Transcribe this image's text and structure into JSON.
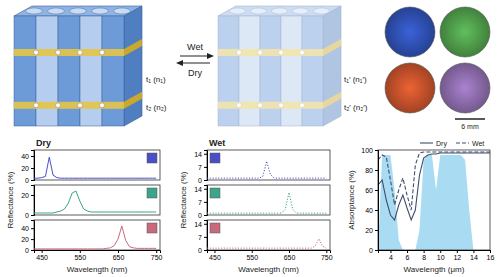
{
  "diagram": {
    "wet": "Wet",
    "dry": "Dry",
    "dry_layers": [
      "t₁ (n₁)",
      "t₂ (n₂)"
    ],
    "wet_layers": [
      "t₁′ (n₁′)",
      "t₂′ (n₂′)"
    ],
    "scale_bar": "6 mm"
  },
  "chart_data": [
    {
      "type": "line",
      "title": "Dry",
      "x_label": "Wavelength (nm)",
      "y_label": "Reflectance (%)",
      "x": [
        430,
        440,
        450,
        460,
        470,
        480,
        490,
        500,
        510,
        520,
        530,
        540,
        550,
        560,
        570,
        580,
        590,
        600,
        610,
        620,
        630,
        640,
        650,
        660,
        670,
        680,
        690,
        700,
        710,
        720,
        730,
        740,
        750
      ],
      "xlim": [
        430,
        760
      ],
      "xticks": [
        450,
        550,
        650,
        750
      ],
      "panels": [
        {
          "ylim": [
            0,
            50
          ],
          "yticks": [
            0,
            20,
            40
          ],
          "series": [
            {
              "color": "#4a4fc8",
              "line_style": "solid",
              "values": [
                3,
                3,
                4,
                6,
                38,
                8,
                4,
                3,
                3,
                3,
                3,
                3,
                3,
                3,
                3,
                3,
                3,
                3,
                3,
                3,
                3,
                3,
                3,
                3,
                3,
                3,
                3,
                3,
                3,
                3,
                3,
                3,
                3
              ]
            }
          ]
        },
        {
          "ylim": [
            0,
            30
          ],
          "yticks": [
            0,
            20
          ],
          "series": [
            {
              "color": "#3aa58a",
              "line_style": "solid",
              "values": [
                2,
                2,
                2,
                2,
                2,
                2,
                3,
                4,
                6,
                12,
                22,
                24,
                14,
                6,
                4,
                3,
                3,
                3,
                3,
                3,
                3,
                3,
                3,
                3,
                3,
                3,
                3,
                3,
                3,
                3,
                3,
                3,
                3
              ]
            }
          ]
        },
        {
          "ylim": [
            0,
            55
          ],
          "yticks": [
            0,
            20,
            40
          ],
          "series": [
            {
              "color": "#c9697e",
              "line_style": "solid",
              "values": [
                2,
                2,
                2,
                2,
                2,
                2,
                2,
                2,
                2,
                2,
                2,
                2,
                2,
                2,
                2,
                2,
                2,
                2,
                2,
                3,
                4,
                8,
                20,
                44,
                18,
                6,
                4,
                3,
                3,
                3,
                3,
                3,
                3
              ]
            }
          ]
        }
      ]
    },
    {
      "type": "line",
      "title": "Wet",
      "x_label": "Wavelength (nm)",
      "y_label": "Reflectance (%)",
      "x": [
        430,
        440,
        450,
        460,
        470,
        480,
        490,
        500,
        510,
        520,
        530,
        540,
        550,
        560,
        570,
        580,
        590,
        600,
        610,
        620,
        630,
        640,
        650,
        660,
        670,
        680,
        690,
        700,
        710,
        720,
        730,
        740,
        750
      ],
      "xlim": [
        430,
        760
      ],
      "xticks": [
        450,
        550,
        650,
        750
      ],
      "panels": [
        {
          "ylim": [
            0,
            16
          ],
          "yticks": [
            0,
            7,
            14
          ],
          "series": [
            {
              "color": "#4a4fc8",
              "line_style": "dotted",
              "values": [
                1,
                1,
                1,
                1,
                1,
                1,
                1,
                1,
                1,
                1,
                1,
                1,
                1,
                1,
                1,
                2,
                10,
                3,
                1,
                1,
                1,
                1,
                1,
                1,
                1,
                1,
                1,
                1,
                1,
                1,
                1,
                1,
                1
              ]
            }
          ]
        },
        {
          "ylim": [
            0,
            16
          ],
          "yticks": [
            0,
            7,
            14
          ],
          "series": [
            {
              "color": "#3aa58a",
              "line_style": "dotted",
              "values": [
                1,
                1,
                1,
                1,
                1,
                1,
                1,
                1,
                1,
                1,
                1,
                1,
                1,
                1,
                1,
                1,
                1,
                1,
                1,
                1,
                1,
                3,
                12,
                3,
                1,
                1,
                1,
                1,
                1,
                1,
                1,
                1,
                1
              ]
            }
          ]
        },
        {
          "ylim": [
            0,
            16
          ],
          "yticks": [
            0,
            7,
            14
          ],
          "series": [
            {
              "color": "#c9697e",
              "line_style": "dotted",
              "values": [
                1,
                1,
                1,
                1,
                1,
                1,
                1,
                1,
                1,
                1,
                1,
                1,
                1,
                1,
                1,
                1,
                1,
                1,
                1,
                1,
                1,
                1,
                1,
                1,
                1,
                1,
                1,
                1,
                1,
                2,
                6,
                2,
                1
              ]
            }
          ]
        }
      ]
    },
    {
      "type": "line",
      "x_label": "Wavelength (μm)",
      "y_label": "Absorptance (%)",
      "x": [
        2.5,
        3,
        3.5,
        4,
        4.5,
        5,
        5.5,
        6,
        6.5,
        7,
        7.5,
        8,
        8.5,
        9,
        9.5,
        10,
        10.5,
        11,
        11.5,
        12,
        12.5,
        13,
        13.5,
        14,
        14.5,
        15,
        15.5,
        16
      ],
      "xlim": [
        2.5,
        16
      ],
      "xticks": [
        4,
        6,
        8,
        10,
        12,
        14,
        16
      ],
      "ylim": [
        0,
        100
      ],
      "yticks": [
        0,
        20,
        40,
        60,
        80,
        100
      ],
      "legend": "top",
      "series": [
        {
          "type": "area",
          "color": "#a9dcf2",
          "values": [
            0,
            95,
            95,
            95,
            60,
            10,
            0,
            0,
            0,
            0,
            20,
            90,
            95,
            95,
            60,
            95,
            95,
            95,
            95,
            95,
            95,
            90,
            40,
            0,
            0,
            0,
            0,
            0
          ]
        },
        {
          "name": "Dry",
          "color": "#3d4f6e",
          "line_style": "solid",
          "values": [
            65,
            70,
            50,
            35,
            30,
            45,
            55,
            42,
            30,
            40,
            75,
            92,
            95,
            96,
            96,
            97,
            97,
            97,
            97,
            97,
            97,
            97,
            97,
            97,
            97,
            97,
            97,
            97
          ]
        },
        {
          "name": "Wet",
          "color": "#3d4f6e",
          "line_style": "dashed",
          "values": [
            90,
            95,
            93,
            70,
            45,
            60,
            72,
            55,
            40,
            85,
            97,
            98,
            98,
            98,
            98,
            98,
            98,
            98,
            98,
            98,
            98,
            98,
            98,
            98,
            98,
            98,
            98,
            98
          ]
        }
      ]
    }
  ]
}
